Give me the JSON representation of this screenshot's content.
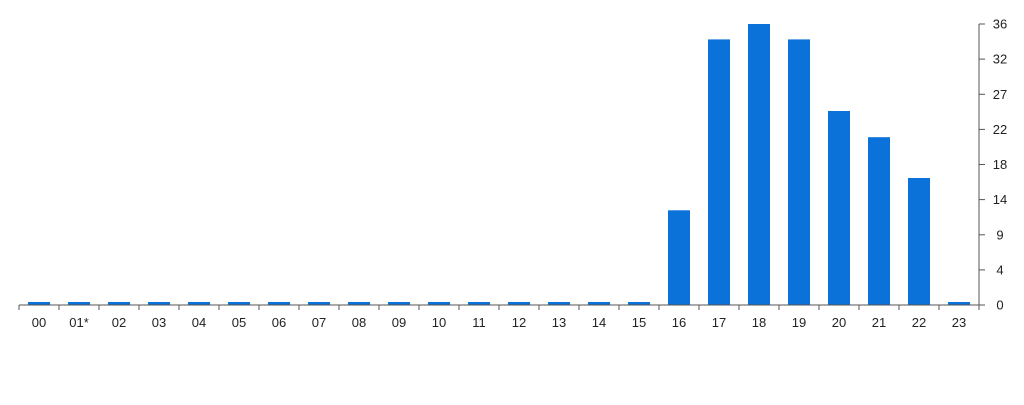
{
  "chart_data": {
    "type": "bar",
    "categories": [
      "00",
      "01*",
      "02",
      "03",
      "04",
      "05",
      "06",
      "07",
      "08",
      "09",
      "10",
      "11",
      "12",
      "13",
      "14",
      "15",
      "16",
      "17",
      "18",
      "19",
      "20",
      "21",
      "22",
      "23"
    ],
    "values": [
      0,
      0,
      0,
      0,
      0,
      0,
      0,
      0,
      0,
      0,
      0,
      0,
      0,
      0,
      0,
      0,
      12.3,
      34.5,
      36.5,
      34.5,
      25.2,
      21.8,
      16.5,
      0
    ],
    "y_ticks": [
      0,
      4,
      9,
      14,
      18,
      22,
      27,
      32,
      36
    ],
    "ylim": [
      0,
      36.5
    ],
    "y_axis_side": "right",
    "grid": false,
    "title": "",
    "xlabel": "",
    "ylabel": "",
    "colors": {
      "bar": "#0a72d9",
      "axis": "#555555",
      "text": "#222222"
    }
  }
}
